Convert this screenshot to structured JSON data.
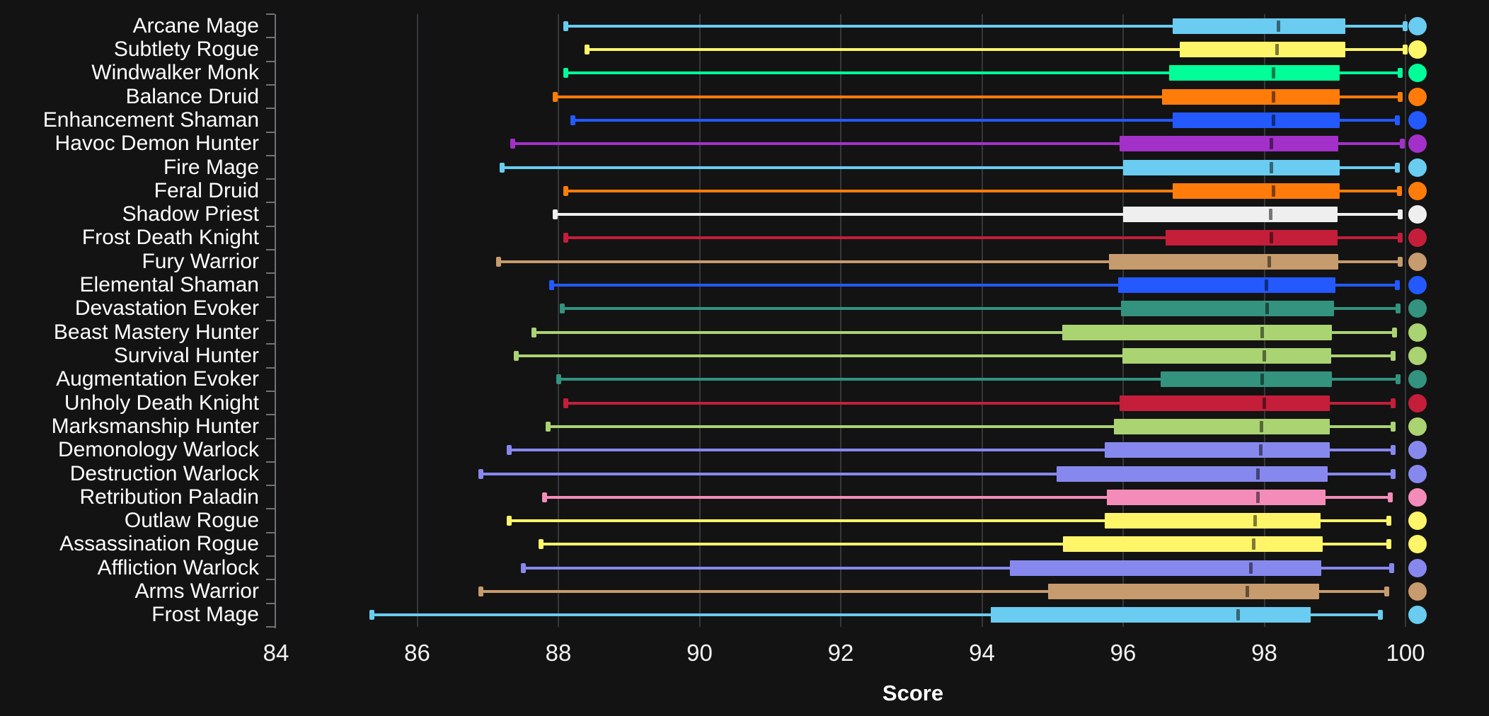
{
  "figure": {
    "background_color": "#131313",
    "grid_color": "#35373a",
    "axis_color": "#6f7377",
    "text_color": "#ffffff",
    "median_line_color": "rgba(0,0,0,0.5)"
  },
  "chart_data": {
    "type": "box",
    "orientation": "horizontal",
    "title": "",
    "xlabel": "Score",
    "ylabel": "",
    "x_ticks": [
      84,
      86,
      88,
      90,
      92,
      94,
      96,
      98,
      100
    ],
    "x_range": [
      84,
      100
    ],
    "grid": true,
    "legend": "none",
    "categories": [
      "Arcane Mage",
      "Subtlety Rogue",
      "Windwalker Monk",
      "Balance Druid",
      "Enhancement Shaman",
      "Havoc Demon Hunter",
      "Fire Mage",
      "Feral Druid",
      "Shadow Priest",
      "Frost Death Knight",
      "Fury Warrior",
      "Elemental Shaman",
      "Devastation Evoker",
      "Beast Mastery Hunter",
      "Survival Hunter",
      "Augmentation Evoker",
      "Unholy Death Knight",
      "Marksmanship Hunter",
      "Demonology Warlock",
      "Destruction Warlock",
      "Retribution Paladin",
      "Outlaw Rogue",
      "Assassination Rogue",
      "Affliction Warlock",
      "Arms Warrior",
      "Frost Mage"
    ],
    "series": [
      {
        "label": "Arcane Mage",
        "color": "#69CCF0",
        "low": 88.1,
        "q1": 96.7,
        "median": 98.2,
        "q3": 99.15,
        "high": 100.0
      },
      {
        "label": "Subtlety Rogue",
        "color": "#FFF569",
        "low": 88.4,
        "q1": 96.8,
        "median": 98.18,
        "q3": 99.15,
        "high": 100.0
      },
      {
        "label": "Windwalker Monk",
        "color": "#00FF98",
        "low": 88.1,
        "q1": 96.65,
        "median": 98.13,
        "q3": 99.07,
        "high": 99.93
      },
      {
        "label": "Balance Druid",
        "color": "#FF7C0A",
        "low": 87.95,
        "q1": 96.55,
        "median": 98.13,
        "q3": 99.07,
        "high": 99.93
      },
      {
        "label": "Enhancement Shaman",
        "color": "#2359FF",
        "low": 88.2,
        "q1": 96.7,
        "median": 98.13,
        "q3": 99.07,
        "high": 99.89
      },
      {
        "label": "Havoc Demon Hunter",
        "color": "#A330C9",
        "low": 87.35,
        "q1": 95.95,
        "median": 98.1,
        "q3": 99.05,
        "high": 99.96
      },
      {
        "label": "Fire Mage",
        "color": "#69CCF0",
        "low": 87.2,
        "q1": 96.0,
        "median": 98.1,
        "q3": 99.07,
        "high": 99.89
      },
      {
        "label": "Feral Druid",
        "color": "#FF7C0A",
        "low": 88.1,
        "q1": 96.7,
        "median": 98.13,
        "q3": 99.07,
        "high": 99.92
      },
      {
        "label": "Shadow Priest",
        "color": "#EFEFEF",
        "low": 87.95,
        "q1": 96.0,
        "median": 98.09,
        "q3": 99.04,
        "high": 99.93
      },
      {
        "label": "Frost Death Knight",
        "color": "#C41E3A",
        "low": 88.1,
        "q1": 96.6,
        "median": 98.1,
        "q3": 99.04,
        "high": 99.93
      },
      {
        "label": "Fury Warrior",
        "color": "#C69B6D",
        "low": 87.15,
        "q1": 95.8,
        "median": 98.07,
        "q3": 99.05,
        "high": 99.93
      },
      {
        "label": "Elemental Shaman",
        "color": "#2359FF",
        "low": 87.9,
        "q1": 95.93,
        "median": 98.03,
        "q3": 99.01,
        "high": 99.89
      },
      {
        "label": "Devastation Evoker",
        "color": "#33937F",
        "low": 88.05,
        "q1": 95.97,
        "median": 98.04,
        "q3": 98.99,
        "high": 99.9
      },
      {
        "label": "Beast Mastery Hunter",
        "color": "#AAD372",
        "low": 87.65,
        "q1": 95.14,
        "median": 97.97,
        "q3": 98.96,
        "high": 99.85
      },
      {
        "label": "Survival Hunter",
        "color": "#AAD372",
        "low": 87.4,
        "q1": 95.99,
        "median": 98.0,
        "q3": 98.95,
        "high": 99.83
      },
      {
        "label": "Augmentation Evoker",
        "color": "#33937F",
        "low": 88.0,
        "q1": 96.53,
        "median": 97.97,
        "q3": 98.96,
        "high": 99.9
      },
      {
        "label": "Unholy Death Knight",
        "color": "#C41E3A",
        "low": 88.1,
        "q1": 95.95,
        "median": 98.0,
        "q3": 98.93,
        "high": 99.83
      },
      {
        "label": "Marksmanship Hunter",
        "color": "#AAD372",
        "low": 87.85,
        "q1": 95.87,
        "median": 97.96,
        "q3": 98.93,
        "high": 99.83
      },
      {
        "label": "Demonology Warlock",
        "color": "#8788EE",
        "low": 87.3,
        "q1": 95.74,
        "median": 97.95,
        "q3": 98.93,
        "high": 99.83
      },
      {
        "label": "Destruction Warlock",
        "color": "#8788EE",
        "low": 86.9,
        "q1": 95.06,
        "median": 97.91,
        "q3": 98.9,
        "high": 99.83
      },
      {
        "label": "Retribution Paladin",
        "color": "#F48CBA",
        "low": 87.8,
        "q1": 95.77,
        "median": 97.91,
        "q3": 98.87,
        "high": 99.79
      },
      {
        "label": "Outlaw Rogue",
        "color": "#FFF569",
        "low": 87.3,
        "q1": 95.74,
        "median": 97.87,
        "q3": 98.8,
        "high": 99.77
      },
      {
        "label": "Assassination Rogue",
        "color": "#FFF569",
        "low": 87.75,
        "q1": 95.15,
        "median": 97.85,
        "q3": 98.83,
        "high": 99.77
      },
      {
        "label": "Affliction Warlock",
        "color": "#8788EE",
        "low": 87.5,
        "q1": 94.4,
        "median": 97.81,
        "q3": 98.81,
        "high": 99.81
      },
      {
        "label": "Arms Warrior",
        "color": "#C69B6D",
        "low": 86.9,
        "q1": 94.94,
        "median": 97.76,
        "q3": 98.78,
        "high": 99.74
      },
      {
        "label": "Frost Mage",
        "color": "#69CCF0",
        "low": 85.35,
        "q1": 94.13,
        "median": 97.63,
        "q3": 98.66,
        "high": 99.65
      }
    ]
  }
}
